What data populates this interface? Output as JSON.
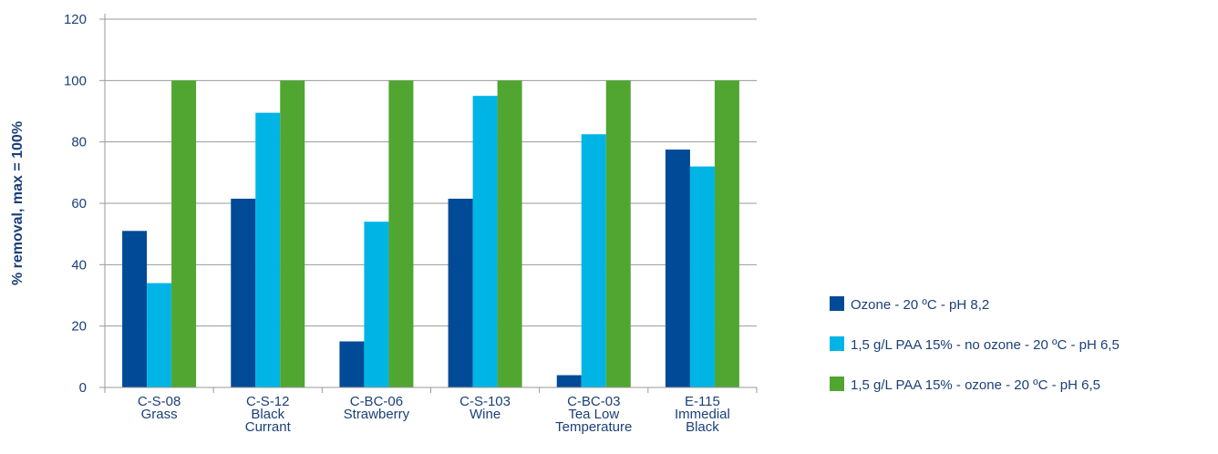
{
  "chart_data": {
    "type": "bar",
    "ylabel": "% removal, max = 100%",
    "xlabel": "",
    "ylim": [
      0,
      120
    ],
    "yticks": [
      0,
      20,
      40,
      60,
      80,
      100,
      120
    ],
    "grid": true,
    "legend_position": "right",
    "categories": [
      [
        "C-S-08",
        "Grass"
      ],
      [
        "C-S-12",
        "Black",
        "Currant"
      ],
      [
        "C-BC-06",
        "Strawberry"
      ],
      [
        "C-S-103",
        "Wine"
      ],
      [
        "C-BC-03",
        "Tea Low",
        "Temperature"
      ],
      [
        "E-115",
        "Immedial",
        "Black"
      ]
    ],
    "series": [
      {
        "name": "Ozone - 20 ºC - pH 8,2",
        "color": "#004a97",
        "values": [
          51,
          61.5,
          15,
          61.5,
          4,
          77.5
        ]
      },
      {
        "name": "1,5 g/L PAA 15% - no ozone - 20 ºC - pH 6,5",
        "color": "#00b4e6",
        "values": [
          34,
          89.5,
          54,
          95,
          82.5,
          72
        ]
      },
      {
        "name": "1,5 g/L PAA 15% - ozone - 20 ºC - pH 6,5",
        "color": "#50a630",
        "values": [
          100,
          100,
          100,
          100,
          100,
          100
        ]
      }
    ]
  }
}
